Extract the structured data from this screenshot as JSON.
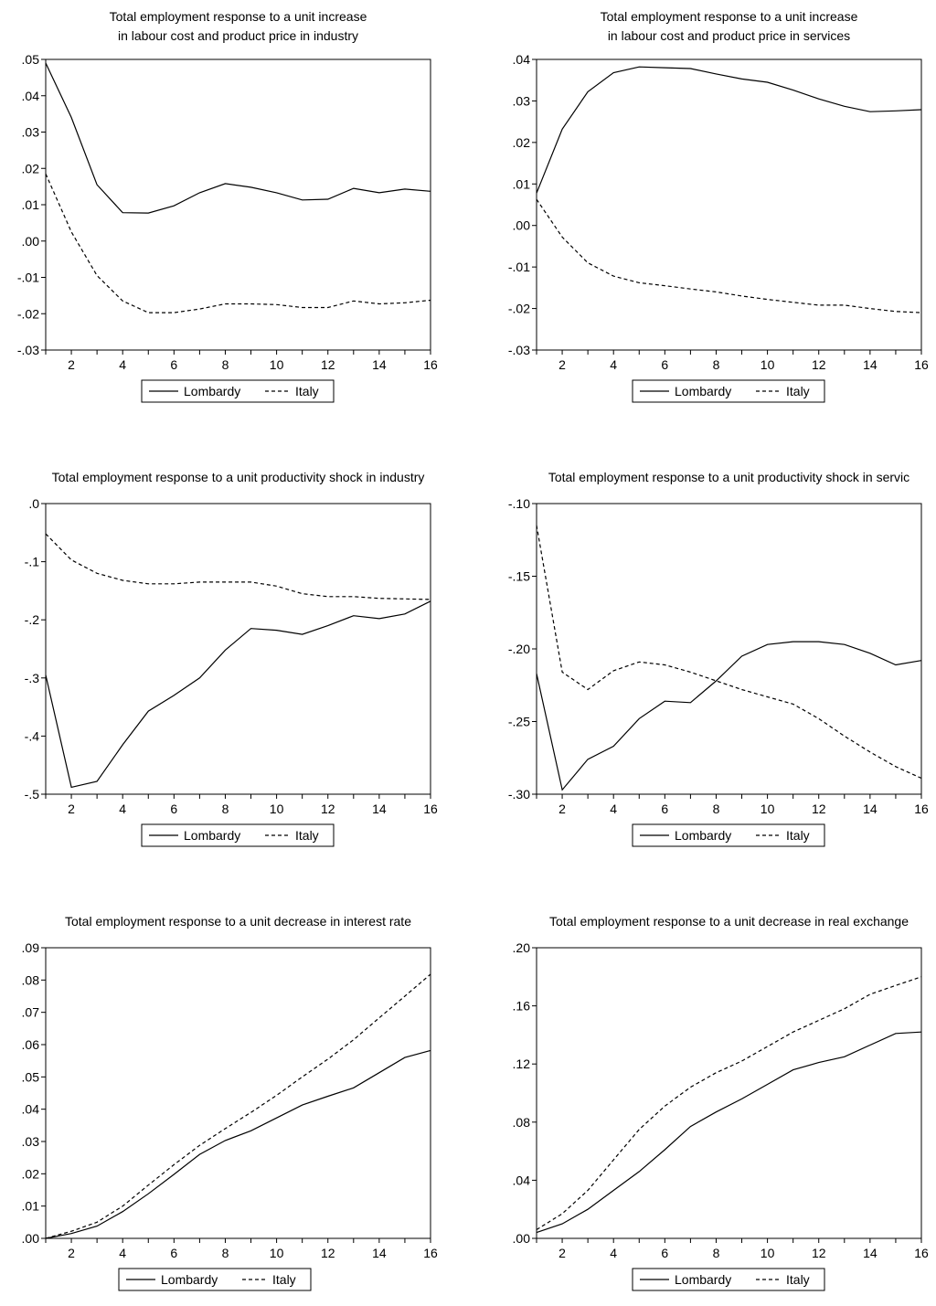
{
  "legend_labels": {
    "solid": "Lombardy",
    "dashed": "Italy"
  },
  "colors": {
    "line": "#000000",
    "frame": "#000000",
    "background": "#ffffff"
  },
  "chart_data": [
    {
      "type": "line",
      "title": [
        "Total employment response to a unit increase",
        "in labour cost and product price in industry"
      ],
      "x": [
        1,
        2,
        3,
        4,
        5,
        6,
        7,
        8,
        9,
        10,
        11,
        12,
        13,
        14,
        15,
        16
      ],
      "x_ticks": [
        2,
        4,
        6,
        8,
        10,
        12,
        14,
        16
      ],
      "ylim": [
        -0.03,
        0.05
      ],
      "y_ticks": [
        -0.03,
        -0.02,
        -0.01,
        0,
        0.01,
        0.02,
        0.03,
        0.04,
        0.05
      ],
      "y_tick_labels": [
        "-.03",
        "-.02",
        "-.01",
        ".00",
        ".01",
        ".02",
        ".03",
        ".04",
        ".05"
      ],
      "series": [
        {
          "name": "Lombardy",
          "style": "solid",
          "values": [
            0.049,
            0.034,
            0.0155,
            0.0078,
            0.0077,
            0.0097,
            0.0133,
            0.0158,
            0.0148,
            0.0133,
            0.0113,
            0.0115,
            0.0145,
            0.0133,
            0.0143,
            0.0137
          ]
        },
        {
          "name": "Italy",
          "style": "dashed",
          "values": [
            0.0185,
            0.0025,
            -0.0095,
            -0.0165,
            -0.0197,
            -0.0197,
            -0.0187,
            -0.0173,
            -0.0173,
            -0.0175,
            -0.0183,
            -0.0183,
            -0.0165,
            -0.0173,
            -0.017,
            -0.0163
          ]
        }
      ],
      "legend": "bottom-center"
    },
    {
      "type": "line",
      "title": [
        "Total employment response to a unit increase",
        "in labour cost and product price in services"
      ],
      "x": [
        1,
        2,
        3,
        4,
        5,
        6,
        7,
        8,
        9,
        10,
        11,
        12,
        13,
        14,
        15,
        16
      ],
      "x_ticks": [
        2,
        4,
        6,
        8,
        10,
        12,
        14,
        16
      ],
      "ylim": [
        -0.03,
        0.04
      ],
      "y_ticks": [
        -0.03,
        -0.02,
        -0.01,
        0,
        0.01,
        0.02,
        0.03,
        0.04
      ],
      "y_tick_labels": [
        "-.03",
        "-.02",
        "-.01",
        ".00",
        ".01",
        ".02",
        ".03",
        ".04"
      ],
      "series": [
        {
          "name": "Lombardy",
          "style": "solid",
          "values": [
            0.0078,
            0.0232,
            0.0322,
            0.0368,
            0.0382,
            0.038,
            0.0378,
            0.0365,
            0.0353,
            0.0345,
            0.0326,
            0.0305,
            0.0287,
            0.0274,
            0.0276,
            0.0279
          ]
        },
        {
          "name": "Italy",
          "style": "dashed",
          "values": [
            0.0063,
            -0.0028,
            -0.009,
            -0.0122,
            -0.0138,
            -0.0145,
            -0.0153,
            -0.016,
            -0.017,
            -0.0178,
            -0.0185,
            -0.0192,
            -0.0192,
            -0.02,
            -0.0207,
            -0.021
          ]
        }
      ],
      "legend": "bottom-center"
    },
    {
      "type": "line",
      "title": [
        "Total employment response to a unit productivity shock in industry"
      ],
      "x": [
        1,
        2,
        3,
        4,
        5,
        6,
        7,
        8,
        9,
        10,
        11,
        12,
        13,
        14,
        15,
        16
      ],
      "x_ticks": [
        2,
        4,
        6,
        8,
        10,
        12,
        14,
        16
      ],
      "ylim": [
        -0.5,
        0.0
      ],
      "y_ticks": [
        -0.5,
        -0.4,
        -0.3,
        -0.2,
        -0.1,
        0.0
      ],
      "y_tick_labels": [
        "-.5",
        "-.4",
        "-.3",
        "-.2",
        "-.1",
        ".0"
      ],
      "series": [
        {
          "name": "Lombardy",
          "style": "solid",
          "values": [
            -0.295,
            -0.488,
            -0.478,
            -0.415,
            -0.357,
            -0.33,
            -0.3,
            -0.252,
            -0.215,
            -0.218,
            -0.225,
            -0.21,
            -0.193,
            -0.198,
            -0.19,
            -0.168
          ]
        },
        {
          "name": "Italy",
          "style": "dashed",
          "values": [
            -0.052,
            -0.097,
            -0.12,
            -0.132,
            -0.138,
            -0.138,
            -0.135,
            -0.135,
            -0.135,
            -0.142,
            -0.155,
            -0.16,
            -0.16,
            -0.163,
            -0.164,
            -0.165
          ]
        }
      ],
      "legend": "bottom-center"
    },
    {
      "type": "line",
      "title": [
        "Total employment response to a unit productivity shock in servic"
      ],
      "x": [
        1,
        2,
        3,
        4,
        5,
        6,
        7,
        8,
        9,
        10,
        11,
        12,
        13,
        14,
        15,
        16
      ],
      "x_ticks": [
        2,
        4,
        6,
        8,
        10,
        12,
        14,
        16
      ],
      "ylim": [
        -0.3,
        -0.1
      ],
      "y_ticks": [
        -0.3,
        -0.25,
        -0.2,
        -0.15,
        -0.1
      ],
      "y_tick_labels": [
        "-.30",
        "-.25",
        "-.20",
        "-.15",
        "-.10"
      ],
      "series": [
        {
          "name": "Lombardy",
          "style": "solid",
          "values": [
            -0.217,
            -0.297,
            -0.276,
            -0.267,
            -0.248,
            -0.236,
            -0.237,
            -0.222,
            -0.205,
            -0.197,
            -0.195,
            -0.195,
            -0.197,
            -0.203,
            -0.211,
            -0.208
          ]
        },
        {
          "name": "Italy",
          "style": "dashed",
          "values": [
            -0.115,
            -0.216,
            -0.228,
            -0.215,
            -0.209,
            -0.211,
            -0.216,
            -0.222,
            -0.228,
            -0.233,
            -0.238,
            -0.248,
            -0.26,
            -0.271,
            -0.281,
            -0.289
          ]
        }
      ],
      "legend": "bottom-center"
    },
    {
      "type": "line",
      "title": [
        "Total employment response to a unit decrease in interest rate"
      ],
      "x": [
        1,
        2,
        3,
        4,
        5,
        6,
        7,
        8,
        9,
        10,
        11,
        12,
        13,
        14,
        15,
        16
      ],
      "x_ticks": [
        2,
        4,
        6,
        8,
        10,
        12,
        14,
        16
      ],
      "ylim": [
        0.0,
        0.09
      ],
      "y_ticks": [
        0,
        0.01,
        0.02,
        0.03,
        0.04,
        0.05,
        0.06,
        0.07,
        0.08,
        0.09
      ],
      "y_tick_labels": [
        ".00",
        ".01",
        ".02",
        ".03",
        ".04",
        ".05",
        ".06",
        ".07",
        ".08",
        ".09"
      ],
      "series": [
        {
          "name": "Lombardy",
          "style": "solid",
          "values": [
            0.0,
            0.0015,
            0.0038,
            0.0083,
            0.0138,
            0.0198,
            0.026,
            0.0303,
            0.0333,
            0.0373,
            0.0413,
            0.044,
            0.0466,
            0.0513,
            0.056,
            0.0582
          ]
        },
        {
          "name": "Italy",
          "style": "dashed",
          "values": [
            0.0,
            0.0022,
            0.005,
            0.01,
            0.0165,
            0.0228,
            0.0288,
            0.034,
            0.039,
            0.0443,
            0.05,
            0.0555,
            0.0615,
            0.0683,
            0.075,
            0.0818
          ]
        }
      ],
      "legend": "bottom-center"
    },
    {
      "type": "line",
      "title": [
        "Total employment response to a unit decrease in real exchange"
      ],
      "x": [
        1,
        2,
        3,
        4,
        5,
        6,
        7,
        8,
        9,
        10,
        11,
        12,
        13,
        14,
        15,
        16
      ],
      "x_ticks": [
        2,
        4,
        6,
        8,
        10,
        12,
        14,
        16
      ],
      "ylim": [
        0.0,
        0.2
      ],
      "y_ticks": [
        0,
        0.04,
        0.08,
        0.12,
        0.16,
        0.2
      ],
      "y_tick_labels": [
        ".00",
        ".04",
        ".08",
        ".12",
        ".16",
        ".20"
      ],
      "series": [
        {
          "name": "Lombardy",
          "style": "solid",
          "values": [
            0.004,
            0.01,
            0.02,
            0.033,
            0.046,
            0.061,
            0.077,
            0.087,
            0.096,
            0.106,
            0.116,
            0.121,
            0.125,
            0.133,
            0.141,
            0.142
          ]
        },
        {
          "name": "Italy",
          "style": "dashed",
          "values": [
            0.006,
            0.017,
            0.033,
            0.054,
            0.075,
            0.091,
            0.104,
            0.114,
            0.122,
            0.132,
            0.142,
            0.15,
            0.158,
            0.168,
            0.174,
            0.18
          ]
        }
      ],
      "legend": "bottom-center"
    }
  ]
}
